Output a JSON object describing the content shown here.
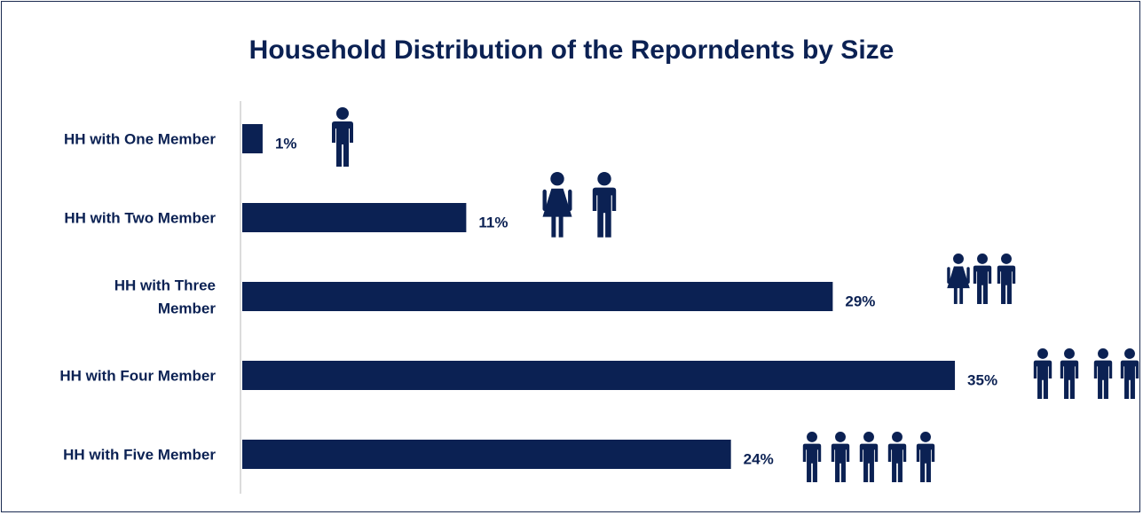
{
  "chart_data": {
    "type": "bar",
    "orientation": "horizontal",
    "title": "Household Distribution of the Reporndents by Size",
    "categories": [
      [
        "HH with One  Member"
      ],
      [
        "HH with Two Member"
      ],
      [
        "HH with Three",
        "Member"
      ],
      [
        "HH with Four Member"
      ],
      [
        "HH with Five Member"
      ]
    ],
    "values": [
      1,
      11,
      29,
      35,
      24
    ],
    "value_labels": [
      "1%",
      "11%",
      "29%",
      "35%",
      "24%"
    ],
    "pictogram": [
      [
        "male-icon"
      ],
      [
        "female-icon",
        "male-icon"
      ],
      [
        "female-icon",
        "male-icon",
        "male-icon"
      ],
      [
        "male-icon",
        "male-icon",
        "male-icon",
        "male-icon"
      ],
      [
        "male-icon",
        "male-icon",
        "male-icon",
        "male-icon",
        "male-icon"
      ]
    ],
    "xlim": [
      0,
      36
    ],
    "grid": false,
    "legend": "none",
    "bar_color": "#0b2153"
  }
}
